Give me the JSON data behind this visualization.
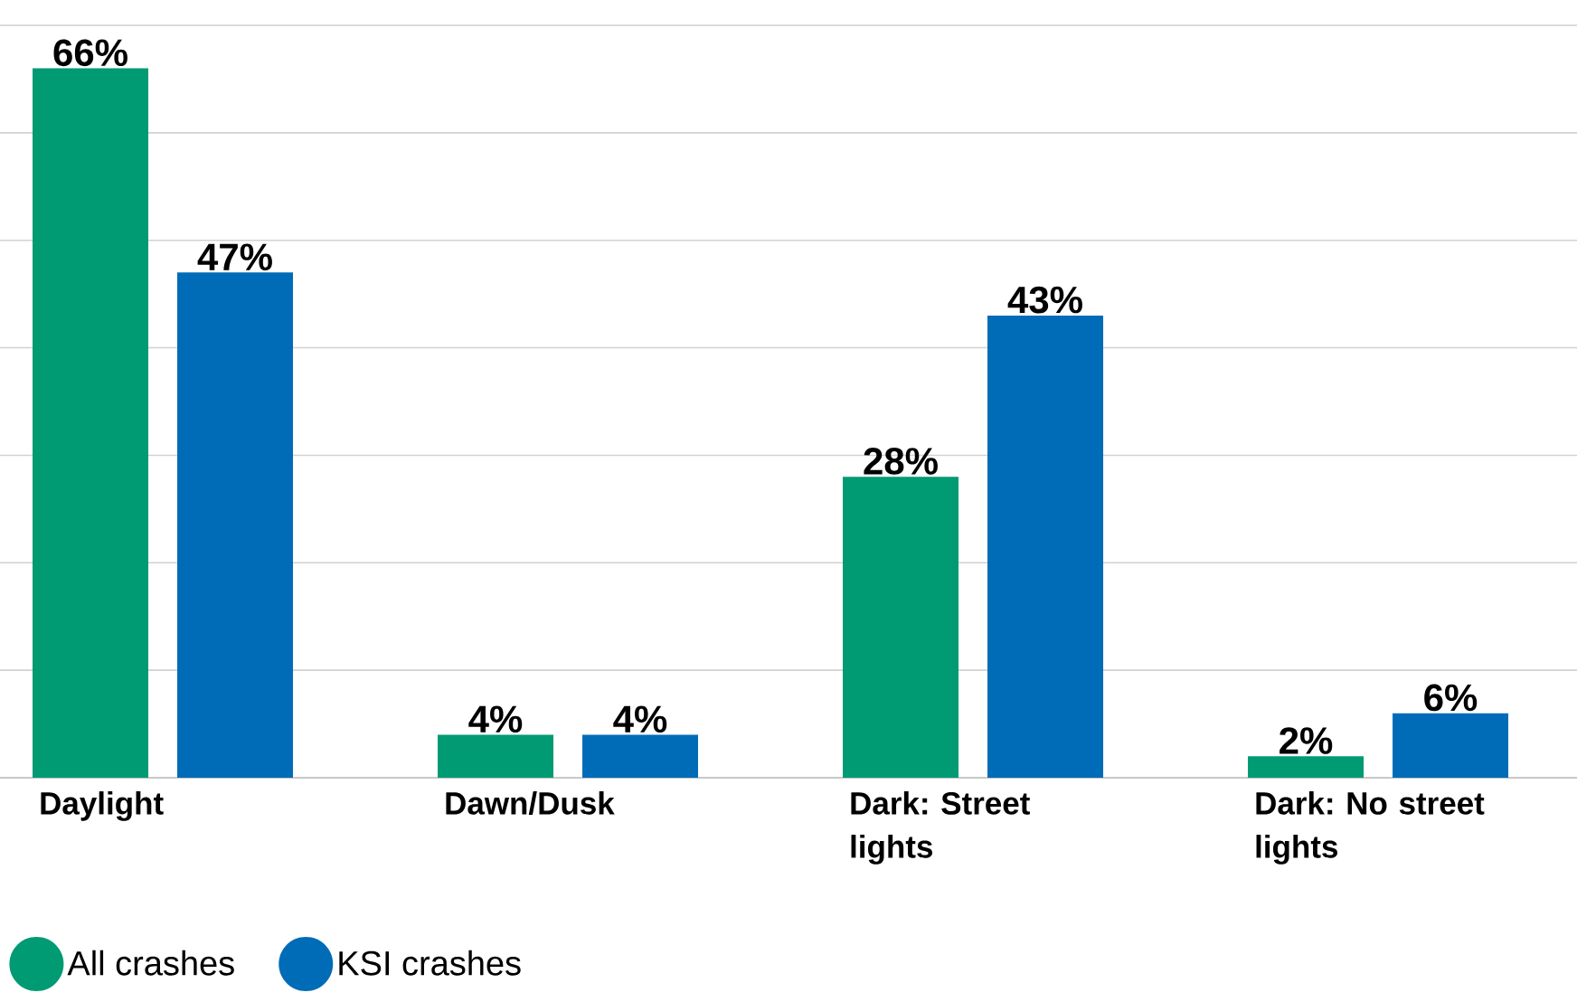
{
  "chart_data": {
    "type": "bar",
    "categories": [
      "Daylight",
      "Dawn/Dusk",
      "Dark: Street lights",
      "Dark: No street lights"
    ],
    "series": [
      {
        "name": "All crashes",
        "color": "#009a73",
        "values": [
          66,
          4,
          28,
          2
        ],
        "value_labels": [
          "66%",
          "4%",
          "28%",
          "2%"
        ]
      },
      {
        "name": "KSI crashes",
        "color": "#006cb7",
        "values": [
          47,
          4,
          43,
          6
        ],
        "value_labels": [
          "47%",
          "4%",
          "43%",
          "6%"
        ]
      }
    ],
    "ylim": [
      0,
      70
    ],
    "yticks": [
      {
        "value": 0,
        "label": null
      },
      {
        "value": 10,
        "label": null
      },
      {
        "value": 20,
        "label": null
      },
      {
        "value": 30,
        "label": null
      },
      {
        "value": 40,
        "label": null
      },
      {
        "value": 50,
        "label": null
      },
      {
        "value": 60,
        "label": null
      },
      {
        "value": 70,
        "label": null
      }
    ],
    "grid": "y",
    "legend": "bottom left",
    "tick_labels": "x"
  }
}
